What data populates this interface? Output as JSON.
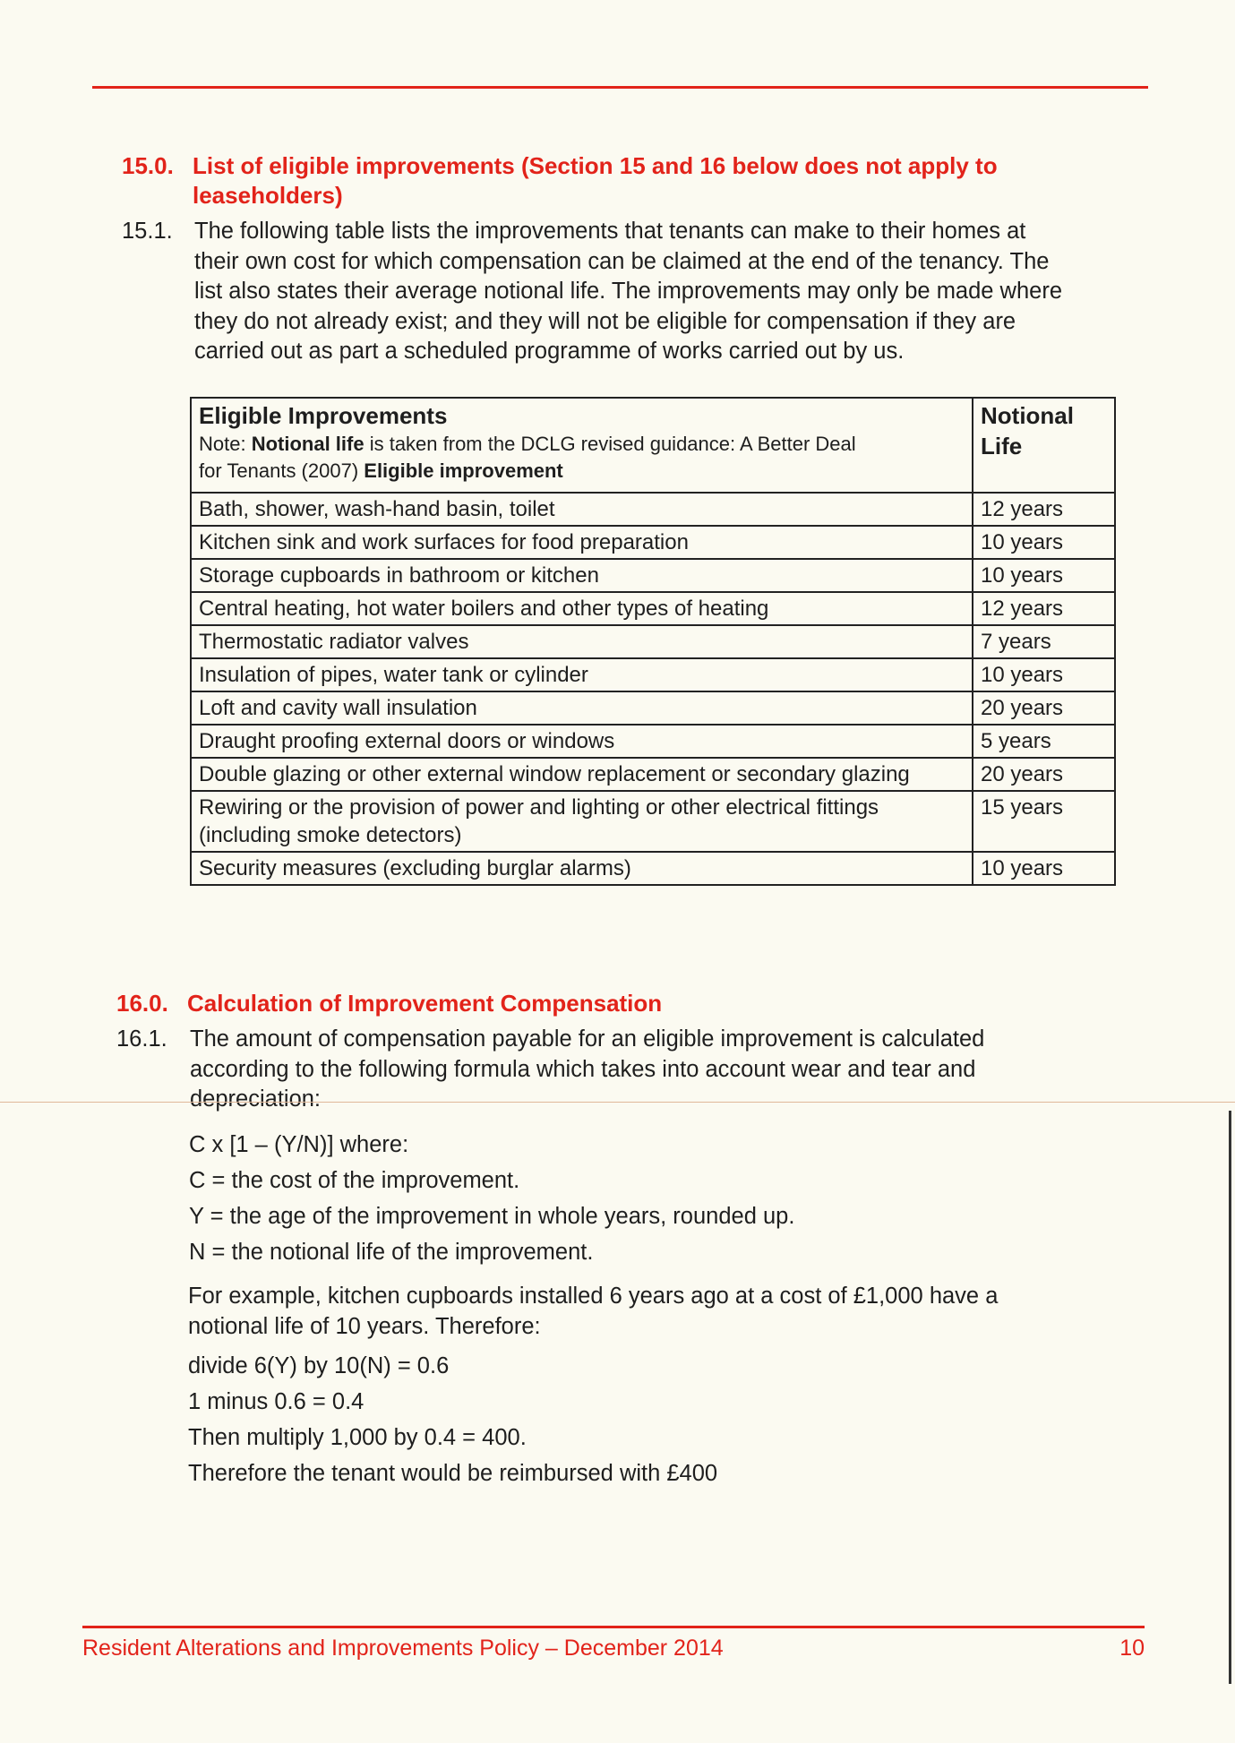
{
  "section15": {
    "number": "15.0.",
    "title_lines": [
      "List of eligible improvements (Section 15 and 16 below does not apply to",
      "leaseholders)"
    ],
    "para_number": "15.1.",
    "para_lines": [
      "The following table lists the improvements that tenants can make to their homes at",
      "their own cost for which compensation can be claimed at the end of the tenancy. The",
      "list also states their average notional life. The improvements may only be made where",
      "they do not already exist; and they will not be eligible for compensation if they are",
      "carried out as part a scheduled programme of works carried out by us."
    ]
  },
  "table": {
    "header_col1": "Eligible Improvements",
    "note_prefix": "Note: ",
    "note_bold1": "Notional life",
    "note_text": " is taken from the DCLG revised guidance: A Better Deal",
    "note_text2": "for Tenants (2007) ",
    "note_bold2": "Eligible improvement",
    "header_col2_line1": "Notional",
    "header_col2_line2": "Life",
    "rows": [
      {
        "item": "Bath, shower, wash-hand basin, toilet",
        "life": "12 years"
      },
      {
        "item": "Kitchen sink and work surfaces for food preparation",
        "life": "10 years"
      },
      {
        "item": "Storage cupboards in bathroom or kitchen",
        "life": "10 years"
      },
      {
        "item": "Central heating, hot water boilers and other types of heating",
        "life": "12 years"
      },
      {
        "item": "Thermostatic radiator valves",
        "life": "7 years"
      },
      {
        "item": "Insulation of pipes, water tank or cylinder",
        "life": "10 years"
      },
      {
        "item": "Loft and cavity wall insulation",
        "life": "20 years"
      },
      {
        "item": "Draught proofing external doors or windows",
        "life": "5 years"
      },
      {
        "item": "Double glazing or other external window replacement or secondary glazing",
        "life": "20 years"
      },
      {
        "item": "Rewiring or the provision of power and lighting or other electrical fittings (including smoke detectors)",
        "life": "15 years"
      },
      {
        "item": "Security measures (excluding burglar alarms)",
        "life": "10 years"
      }
    ]
  },
  "section16": {
    "number": "16.0.",
    "title": "Calculation of Improvement Compensation",
    "para_number": "16.1.",
    "para_lines": [
      "The amount of compensation payable for an eligible improvement is calculated",
      "according to the following formula which takes into account wear and tear and",
      "depreciation:"
    ],
    "formula_lines": [
      "C x [1 – (Y/N)] where:",
      "C = the cost of the improvement.",
      "Y = the age of the improvement in whole years, rounded up.",
      "N = the notional life of the improvement."
    ],
    "example_lines": [
      "For example, kitchen cupboards installed 6 years ago at a cost of £1,000 have a",
      "notional life of 10 years. Therefore:"
    ],
    "calc_lines": [
      "divide 6(Y) by 10(N) = 0.6",
      "1 minus 0.6 = 0.4",
      "Then multiply 1,000 by 0.4 = 400.",
      "Therefore the tenant would be reimbursed with £400"
    ]
  },
  "footer": {
    "title": "Resident Alterations and Improvements Policy – December 2014",
    "page": "10"
  },
  "colors": {
    "accent": "#e2231a",
    "paper": "#fbfaf1"
  }
}
